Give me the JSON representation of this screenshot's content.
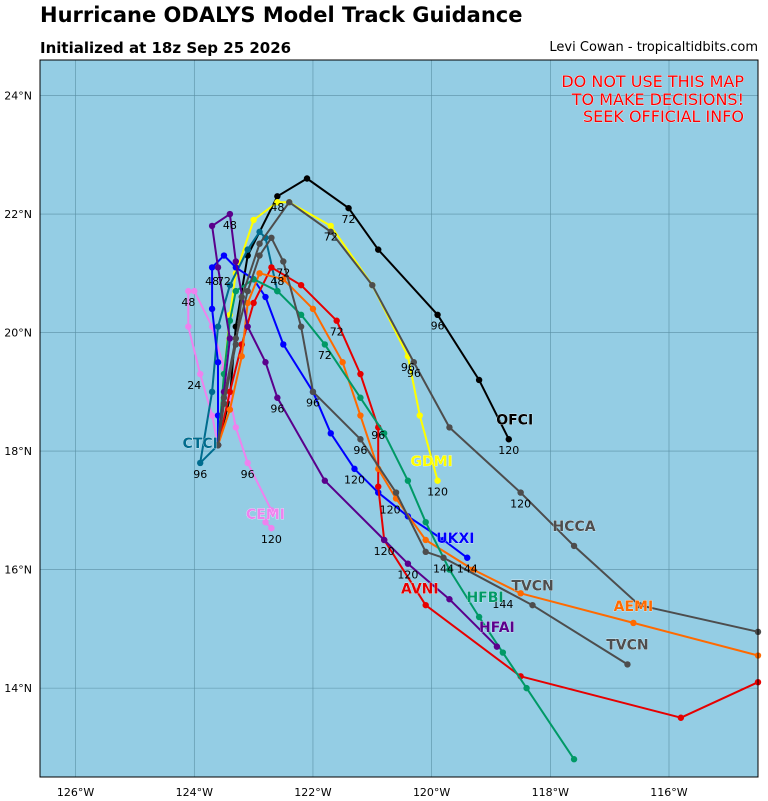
{
  "header": {
    "title": "Hurricane ODALYS Model Track Guidance",
    "subtitle": "Initialized at 18z Sep 25 2026",
    "credit": "Levi Cowan - tropicaltidbits.com"
  },
  "warning": {
    "lines": [
      "DO NOT USE THIS MAP",
      "TO MAKE DECISIONS!",
      "SEEK OFFICIAL INFO"
    ],
    "color": "#ff0000"
  },
  "colors": {
    "ocean": "#94cde4",
    "grid": "#5a8fa3"
  },
  "chart_data": {
    "type": "scatter",
    "title": "Hurricane ODALYS Model Track Guidance",
    "xlim": [
      -126.6,
      -114.5
    ],
    "ylim": [
      12.5,
      24.6
    ],
    "x_ticks": [
      {
        "value": -126,
        "label": "126°W"
      },
      {
        "value": -124,
        "label": "124°W"
      },
      {
        "value": -122,
        "label": "122°W"
      },
      {
        "value": -120,
        "label": "120°W"
      },
      {
        "value": -118,
        "label": "118°W"
      },
      {
        "value": -116,
        "label": "116°W"
      }
    ],
    "y_ticks": [
      {
        "value": 14,
        "label": "14°N"
      },
      {
        "value": 16,
        "label": "16°N"
      },
      {
        "value": 18,
        "label": "18°N"
      },
      {
        "value": 20,
        "label": "20°N"
      },
      {
        "value": 22,
        "label": "22°N"
      },
      {
        "value": 24,
        "label": "24°N"
      }
    ],
    "grid": true,
    "series": [
      {
        "name": "OFCI",
        "color": "#000000",
        "points": [
          [
            -123.6,
            18.1
          ],
          [
            -123.4,
            18.9
          ],
          [
            -123.3,
            20.1
          ],
          [
            -123.1,
            21.3
          ],
          [
            -122.6,
            22.3
          ],
          [
            -122.1,
            22.6
          ],
          [
            -121.4,
            22.1
          ],
          [
            -120.9,
            21.4
          ],
          [
            -119.9,
            20.3
          ],
          [
            -119.2,
            19.2
          ],
          [
            -118.7,
            18.2
          ]
        ],
        "labels": [
          {
            "text": "48",
            "lon": -122.6,
            "lat": 22.05
          },
          {
            "text": "72",
            "lon": -121.4,
            "lat": 21.85
          },
          {
            "text": "96",
            "lon": -119.9,
            "lat": 20.05
          },
          {
            "text": "120",
            "lon": -118.7,
            "lat": 17.95
          }
        ],
        "name_pos": {
          "lon": -118.6,
          "lat": 18.45
        }
      },
      {
        "name": "GDMI",
        "color": "#ffff00",
        "points": [
          [
            -123.6,
            18.1
          ],
          [
            -123.5,
            19.3
          ],
          [
            -123.4,
            20.3
          ],
          [
            -123.3,
            21.0
          ],
          [
            -123.0,
            21.9
          ],
          [
            -122.6,
            22.2
          ],
          [
            -122.4,
            22.2
          ],
          [
            -121.7,
            21.8
          ],
          [
            -121.0,
            20.8
          ],
          [
            -120.4,
            19.6
          ],
          [
            -120.2,
            18.6
          ],
          [
            -119.9,
            17.5
          ]
        ],
        "labels": [
          {
            "text": "72",
            "lon": -121.7,
            "lat": 21.55
          },
          {
            "text": "96",
            "lon": -120.4,
            "lat": 19.35
          },
          {
            "text": "120",
            "lon": -119.9,
            "lat": 17.25
          }
        ],
        "name_pos": {
          "lon": -120.0,
          "lat": 17.75
        }
      },
      {
        "name": "CEMI",
        "color": "#ee82ee",
        "points": [
          [
            -123.6,
            18.1
          ],
          [
            -123.7,
            18.6
          ],
          [
            -123.9,
            19.3
          ],
          [
            -124.1,
            20.1
          ],
          [
            -124.1,
            20.7
          ],
          [
            -124.0,
            20.7
          ],
          [
            -123.7,
            20.1
          ],
          [
            -123.5,
            19.4
          ],
          [
            -123.4,
            18.9
          ],
          [
            -123.3,
            18.4
          ],
          [
            -123.1,
            17.8
          ],
          [
            -122.7,
            17.0
          ],
          [
            -122.8,
            16.8
          ],
          [
            -122.7,
            16.7
          ]
        ],
        "labels": [
          {
            "text": "24",
            "lon": -124.0,
            "lat": 19.05
          },
          {
            "text": "48",
            "lon": -124.1,
            "lat": 20.45
          },
          {
            "text": "96",
            "lon": -123.1,
            "lat": 17.55
          },
          {
            "text": "120",
            "lon": -122.7,
            "lat": 16.45
          }
        ],
        "name_pos": {
          "lon": -122.8,
          "lat": 16.85
        }
      },
      {
        "name": "CTCI",
        "color": "#006c8e",
        "points": [
          [
            -123.6,
            18.1
          ],
          [
            -123.9,
            17.8
          ],
          [
            -123.7,
            19.0
          ],
          [
            -123.6,
            20.1
          ],
          [
            -123.4,
            20.8
          ],
          [
            -123.1,
            21.4
          ],
          [
            -122.9,
            21.7
          ],
          [
            -122.8,
            21.6
          ],
          [
            -122.6,
            20.7
          ]
        ],
        "labels": [
          {
            "text": "96",
            "lon": -123.9,
            "lat": 17.55
          }
        ],
        "name_pos": {
          "lon": -123.9,
          "lat": 18.05
        }
      },
      {
        "name": "UKXI",
        "color": "#0000ff",
        "points": [
          [
            -123.6,
            18.1
          ],
          [
            -123.6,
            18.6
          ],
          [
            -123.6,
            19.5
          ],
          [
            -123.7,
            20.4
          ],
          [
            -123.7,
            21.1
          ],
          [
            -123.5,
            21.3
          ],
          [
            -123.3,
            21.1
          ],
          [
            -123.0,
            20.9
          ],
          [
            -122.8,
            20.6
          ],
          [
            -122.5,
            19.8
          ],
          [
            -122.0,
            19.0
          ],
          [
            -121.7,
            18.3
          ],
          [
            -121.3,
            17.7
          ],
          [
            -120.9,
            17.3
          ],
          [
            -120.4,
            16.9
          ],
          [
            -119.8,
            16.5
          ],
          [
            -119.4,
            16.2
          ]
        ],
        "labels": [
          {
            "text": "48",
            "lon": -123.7,
            "lat": 20.8
          },
          {
            "text": "72",
            "lon": -123.5,
            "lat": 20.8
          },
          {
            "text": "96",
            "lon": -122.0,
            "lat": 18.75
          },
          {
            "text": "120",
            "lon": -121.3,
            "lat": 17.45
          },
          {
            "text": "144",
            "lon": -119.4,
            "lat": 15.95
          }
        ],
        "name_pos": {
          "lon": -119.6,
          "lat": 16.45
        }
      },
      {
        "name": "AVNI",
        "color": "#e60000",
        "points": [
          [
            -123.6,
            18.1
          ],
          [
            -123.4,
            19.0
          ],
          [
            -123.2,
            19.8
          ],
          [
            -123.0,
            20.5
          ],
          [
            -122.7,
            21.1
          ],
          [
            -122.2,
            20.8
          ],
          [
            -121.6,
            20.2
          ],
          [
            -121.2,
            19.3
          ],
          [
            -120.9,
            18.4
          ],
          [
            -120.9,
            17.4
          ],
          [
            -120.8,
            16.5
          ],
          [
            -120.1,
            15.4
          ],
          [
            -118.5,
            14.2
          ],
          [
            -115.8,
            13.5
          ],
          [
            -114.5,
            14.1
          ]
        ],
        "labels": [
          {
            "text": "48",
            "lon": -122.6,
            "lat": 20.8
          },
          {
            "text": "72",
            "lon": -121.6,
            "lat": 19.95
          },
          {
            "text": "96",
            "lon": -120.9,
            "lat": 18.2
          },
          {
            "text": "120",
            "lon": -120.8,
            "lat": 16.25
          }
        ],
        "name_pos": {
          "lon": -120.2,
          "lat": 15.6
        }
      },
      {
        "name": "AEMI",
        "color": "#ff6a00",
        "points": [
          [
            -123.6,
            18.1
          ],
          [
            -123.4,
            18.7
          ],
          [
            -123.2,
            19.6
          ],
          [
            -123.1,
            20.5
          ],
          [
            -122.9,
            21.0
          ],
          [
            -122.5,
            20.9
          ],
          [
            -122.0,
            20.4
          ],
          [
            -121.5,
            19.5
          ],
          [
            -121.2,
            18.6
          ],
          [
            -120.9,
            17.7
          ],
          [
            -120.6,
            17.2
          ],
          [
            -120.1,
            16.5
          ],
          [
            -119.3,
            16.0
          ],
          [
            -118.5,
            15.6
          ],
          [
            -116.6,
            15.1
          ],
          [
            -114.5,
            14.55
          ]
        ],
        "labels": [
          {
            "text": "120",
            "lon": -120.7,
            "lat": 16.95
          }
        ],
        "name_pos": {
          "lon": -116.6,
          "lat": 15.3
        }
      },
      {
        "name": "HFBI",
        "color": "#009966",
        "points": [
          [
            -123.6,
            18.1
          ],
          [
            -123.5,
            19.3
          ],
          [
            -123.4,
            20.2
          ],
          [
            -123.3,
            20.7
          ],
          [
            -123.0,
            20.9
          ],
          [
            -122.6,
            20.7
          ],
          [
            -122.2,
            20.3
          ],
          [
            -121.8,
            19.8
          ],
          [
            -121.2,
            18.9
          ],
          [
            -120.8,
            18.3
          ],
          [
            -120.4,
            17.5
          ],
          [
            -120.1,
            16.8
          ],
          [
            -119.7,
            16.0
          ],
          [
            -119.2,
            15.2
          ],
          [
            -118.8,
            14.6
          ],
          [
            -118.4,
            14.0
          ],
          [
            -117.6,
            12.8
          ]
        ],
        "labels": [
          {
            "text": "72",
            "lon": -121.8,
            "lat": 19.55
          },
          {
            "text": "144",
            "lon": -118.8,
            "lat": 15.35
          }
        ],
        "name_pos": {
          "lon": -119.1,
          "lat": 15.45
        }
      },
      {
        "name": "HFAI",
        "color": "#5a008c",
        "points": [
          [
            -123.6,
            18.1
          ],
          [
            -123.5,
            19.0
          ],
          [
            -123.4,
            19.9
          ],
          [
            -123.6,
            21.1
          ],
          [
            -123.7,
            21.8
          ],
          [
            -123.4,
            22.0
          ],
          [
            -123.3,
            21.2
          ],
          [
            -123.1,
            20.1
          ],
          [
            -122.8,
            19.5
          ],
          [
            -122.6,
            18.9
          ],
          [
            -121.8,
            17.5
          ],
          [
            -120.8,
            16.5
          ],
          [
            -120.4,
            16.1
          ],
          [
            -119.7,
            15.5
          ],
          [
            -118.9,
            14.7
          ]
        ],
        "labels": [
          {
            "text": "48",
            "lon": -123.4,
            "lat": 21.75
          },
          {
            "text": "96",
            "lon": -122.6,
            "lat": 18.65
          },
          {
            "text": "120",
            "lon": -120.4,
            "lat": 15.85
          }
        ],
        "name_pos": {
          "lon": -118.9,
          "lat": 14.95
        }
      },
      {
        "name": "HCCA",
        "color": "#4d4d4d",
        "points": [
          [
            -123.6,
            18.1
          ],
          [
            -123.5,
            18.8
          ],
          [
            -123.3,
            19.8
          ],
          [
            -123.2,
            20.6
          ],
          [
            -122.9,
            21.5
          ],
          [
            -122.4,
            22.2
          ],
          [
            -121.7,
            21.7
          ],
          [
            -121.0,
            20.8
          ],
          [
            -120.3,
            19.5
          ],
          [
            -119.7,
            18.4
          ],
          [
            -118.5,
            17.3
          ],
          [
            -117.6,
            16.4
          ],
          [
            -116.5,
            15.4
          ],
          [
            -114.5,
            14.95
          ]
        ],
        "labels": [
          {
            "text": "96",
            "lon": -120.3,
            "lat": 19.25
          },
          {
            "text": "120",
            "lon": -118.5,
            "lat": 17.05
          }
        ],
        "name_pos": {
          "lon": -117.6,
          "lat": 16.65
        }
      },
      {
        "name": "TVCN",
        "color": "#4d4d4d",
        "points": [
          [
            -123.6,
            18.1
          ],
          [
            -123.5,
            18.9
          ],
          [
            -123.3,
            19.9
          ],
          [
            -123.1,
            20.7
          ],
          [
            -122.9,
            21.3
          ],
          [
            -122.7,
            21.6
          ],
          [
            -122.5,
            21.2
          ],
          [
            -122.2,
            20.1
          ],
          [
            -122.0,
            19.0
          ],
          [
            -121.2,
            18.2
          ],
          [
            -120.6,
            17.3
          ],
          [
            -120.1,
            16.3
          ],
          [
            -119.8,
            16.2
          ],
          [
            -118.3,
            15.4
          ],
          [
            -116.7,
            14.4
          ]
        ],
        "labels": [
          {
            "text": "72",
            "lon": -122.5,
            "lat": 20.95
          },
          {
            "text": "96",
            "lon": -121.2,
            "lat": 17.95
          },
          {
            "text": "144",
            "lon": -119.8,
            "lat": 15.95
          }
        ],
        "name_pos": {
          "lon": -116.7,
          "lat": 14.65
        }
      },
      {
        "name": "TVCN",
        "color": "#4d4d4d",
        "points": [],
        "labels": [],
        "name_pos": {
          "lon": -118.3,
          "lat": 15.65
        }
      }
    ]
  }
}
